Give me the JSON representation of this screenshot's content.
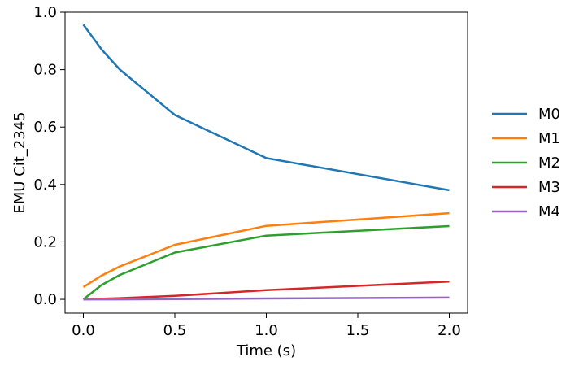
{
  "chart_data": {
    "type": "line",
    "title": "",
    "xlabel": "Time (s)",
    "ylabel": "EMU Cit_2345",
    "xlim": [
      -0.1,
      2.1
    ],
    "ylim": [
      -0.048,
      1.0
    ],
    "xticks": [
      0.0,
      0.5,
      1.0,
      1.5,
      2.0
    ],
    "xtick_labels": [
      "0.0",
      "0.5",
      "1.0",
      "1.5",
      "2.0"
    ],
    "yticks": [
      0.0,
      0.2,
      0.4,
      0.6,
      0.8,
      1.0
    ],
    "ytick_labels": [
      "0.0",
      "0.2",
      "0.4",
      "0.6",
      "0.8",
      "1.0"
    ],
    "grid": false,
    "legend_position": "right, outside plot",
    "x": [
      0.0,
      0.1,
      0.2,
      0.5,
      1.0,
      2.0
    ],
    "series": [
      {
        "name": "M0",
        "color": "#1f77b4",
        "values": [
          0.957,
          0.87,
          0.8,
          0.642,
          0.492,
          0.38
        ]
      },
      {
        "name": "M1",
        "color": "#ff7f0e",
        "values": [
          0.043,
          0.083,
          0.115,
          0.19,
          0.256,
          0.3
        ]
      },
      {
        "name": "M2",
        "color": "#2ca02c",
        "values": [
          0.0,
          0.05,
          0.085,
          0.163,
          0.222,
          0.255
        ]
      },
      {
        "name": "M3",
        "color": "#d62728",
        "values": [
          0.0,
          0.002,
          0.004,
          0.012,
          0.032,
          0.062
        ]
      },
      {
        "name": "M4",
        "color": "#9467bd",
        "values": [
          0.0,
          0.0,
          0.0,
          0.001,
          0.003,
          0.006
        ]
      }
    ]
  }
}
